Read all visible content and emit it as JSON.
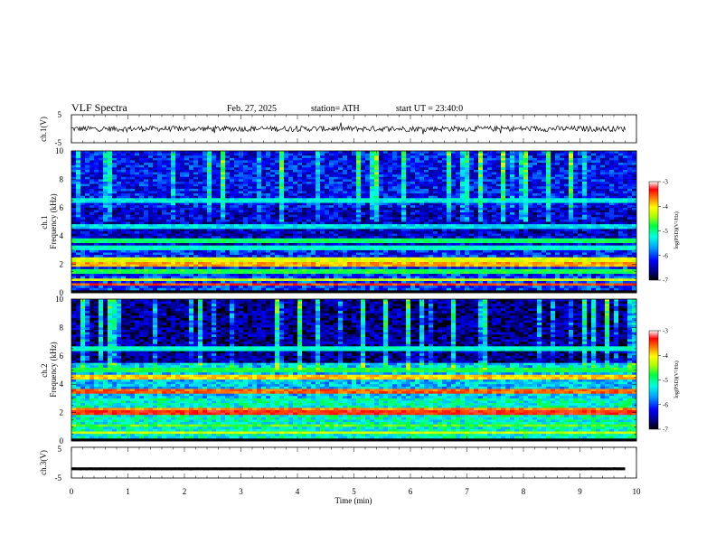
{
  "header": {
    "title": "VLF Spectra",
    "date": "Feb. 27, 2025",
    "station": "station= ATH",
    "start_ut": "start  UT  =   23:40:0"
  },
  "chart_data": [
    {
      "type": "line",
      "panel": "ch1-waveform",
      "ylabel": "ch.1(V)",
      "ylim": [
        -5,
        5
      ],
      "yticks": [
        "5",
        "-5"
      ],
      "xlim": [
        0,
        10
      ],
      "data_extent_min": [
        0,
        9.8
      ],
      "approx_level_V": 0,
      "approx_amplitude_V": 1
    },
    {
      "type": "heatmap",
      "panel": "ch1-spectrogram",
      "ylabel": "ch.1\nFrequency (kHz)",
      "ylabel_lines": [
        "ch.1",
        "Frequency (kHz)"
      ],
      "ylim": [
        0,
        10
      ],
      "yticks": [
        "0",
        "2",
        "4",
        "6",
        "8",
        "10"
      ],
      "xlim": [
        0,
        10
      ],
      "colorbar": {
        "label": "log(PSD)(V²/Hz)",
        "range": [
          -7,
          -3
        ],
        "ticks": [
          "-3",
          "-4",
          "-5",
          "-6",
          "-7"
        ]
      },
      "bands_kHz": [
        {
          "f": 0.6,
          "level": -3.5
        },
        {
          "f": 0.9,
          "level": -4.2
        },
        {
          "f": 1.5,
          "level": -4.8
        },
        {
          "f": 2.0,
          "level": -3.8
        },
        {
          "f": 2.3,
          "level": -4.2
        },
        {
          "f": 3.2,
          "level": -5.2
        },
        {
          "f": 3.7,
          "level": -4.9
        },
        {
          "f": 4.7,
          "level": -5.4
        },
        {
          "f": 6.5,
          "level": -5.3
        }
      ],
      "background_levels": [
        {
          "f_from": 0,
          "f_to": 1.2,
          "level": -6.0
        },
        {
          "f_from": 1.2,
          "f_to": 3.0,
          "level": -6.1
        },
        {
          "f_from": 3.0,
          "f_to": 6.0,
          "level": -6.4
        },
        {
          "f_from": 6.0,
          "f_to": 10.0,
          "level": -6.2
        }
      ]
    },
    {
      "type": "heatmap",
      "panel": "ch2-spectrogram",
      "ylabel": "ch.2\nFrequency (kHz)",
      "ylabel_lines": [
        "ch.2",
        "Frequency (kHz)"
      ],
      "ylim": [
        0,
        10
      ],
      "yticks": [
        "0",
        "2",
        "4",
        "6",
        "8",
        "10"
      ],
      "xlim": [
        0,
        10
      ],
      "colorbar": {
        "label": "log(PSD)(V²/Hz)",
        "range": [
          -7,
          -3
        ],
        "ticks": [
          "-3",
          "-4",
          "-5",
          "-6",
          "-7"
        ]
      },
      "bands_kHz": [
        {
          "f": 0.6,
          "level": -4.3
        },
        {
          "f": 1.1,
          "level": -4.6
        },
        {
          "f": 2.0,
          "level": -3.4
        },
        {
          "f": 2.2,
          "level": -3.7
        },
        {
          "f": 3.5,
          "level": -3.6
        },
        {
          "f": 4.5,
          "level": -3.9
        },
        {
          "f": 5.0,
          "level": -4.8
        },
        {
          "f": 6.5,
          "level": -5.2
        }
      ],
      "background_levels": [
        {
          "f_from": 0,
          "f_to": 3.0,
          "level": -5.2
        },
        {
          "f_from": 3.0,
          "f_to": 5.5,
          "level": -5.5
        },
        {
          "f_from": 5.5,
          "f_to": 10.0,
          "level": -6.6
        }
      ]
    },
    {
      "type": "line",
      "panel": "ch3-waveform",
      "ylabel": "ch.3(V)",
      "ylim": [
        -5,
        5
      ],
      "yticks": [
        "5",
        "-5"
      ],
      "xlim": [
        0,
        10
      ],
      "xlabel": "Time (min)",
      "xticks": [
        "0",
        "1",
        "2",
        "3",
        "4",
        "5",
        "6",
        "7",
        "8",
        "9",
        "10"
      ],
      "data_extent_min": [
        0,
        9.8
      ],
      "approx_level_V": -2,
      "approx_amplitude_V": 0.1
    }
  ]
}
